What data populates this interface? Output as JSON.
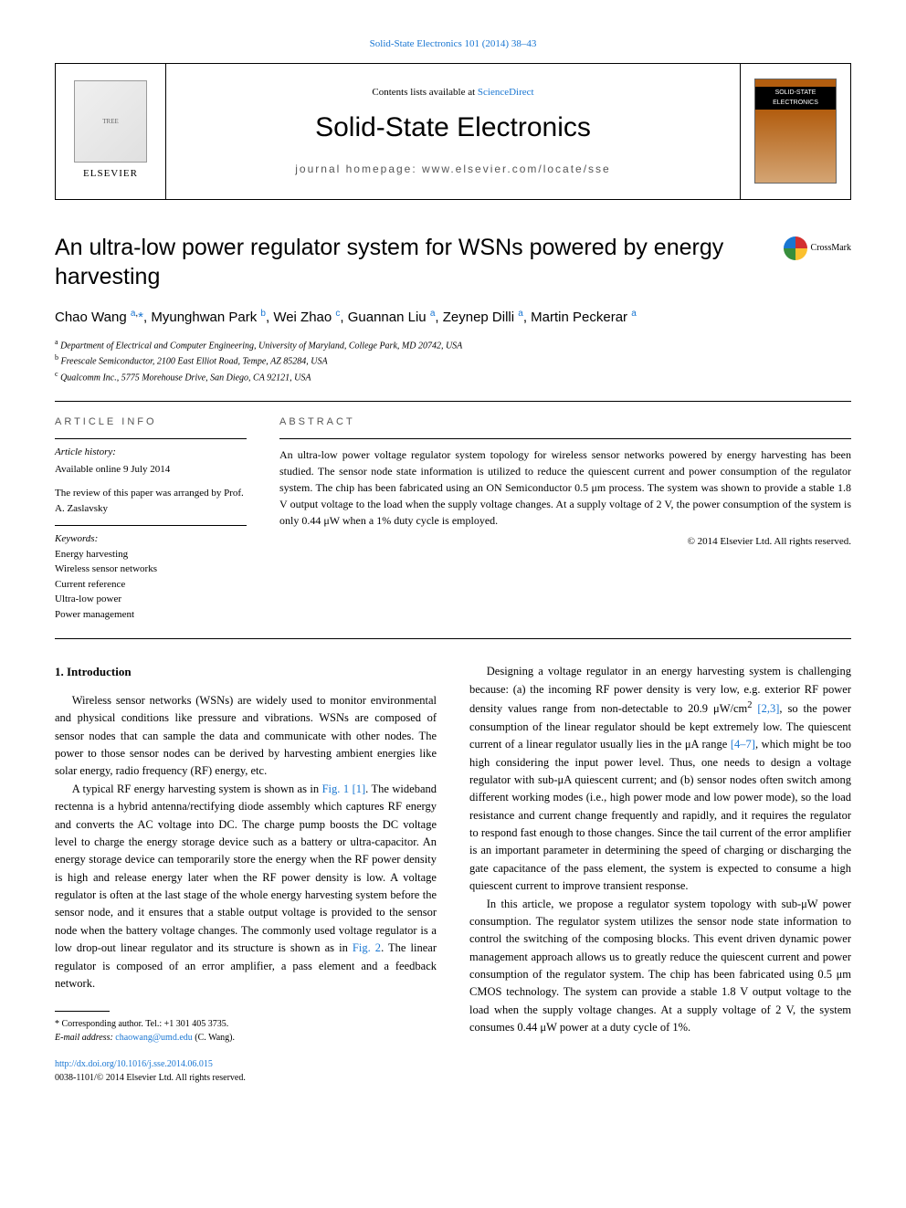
{
  "colors": {
    "link": "#1976d2",
    "text": "#000000",
    "muted": "#555555",
    "bg": "#ffffff",
    "cover_top": "#b25d0f",
    "cover_bottom": "#d4a574"
  },
  "typography": {
    "body_family": "Georgia, 'Times New Roman', serif",
    "sans_family": "Arial, sans-serif",
    "title_size_pt": 25,
    "journal_size_pt": 30,
    "body_size_pt": 12.5
  },
  "topline": {
    "text": "Solid-State Electronics 101 (2014) 38–43"
  },
  "banner": {
    "publisher": "ELSEVIER",
    "contents_prefix": "Contents lists available at ",
    "contents_link": "ScienceDirect",
    "journal": "Solid-State Electronics",
    "homepage": "journal homepage: www.elsevier.com/locate/sse",
    "cover_label": "SOLID-STATE ELECTRONICS"
  },
  "crossmark": "CrossMark",
  "title": "An ultra-low power regulator system for WSNs powered by energy harvesting",
  "authors_html": "Chao Wang <sup><a href='#'>a</a>,</sup><a href='#'>*</a>, Myunghwan Park <sup><a href='#'>b</a></sup>, Wei Zhao <sup><a href='#'>c</a></sup>, Guannan Liu <sup><a href='#'>a</a></sup>, Zeynep Dilli <sup><a href='#'>a</a></sup>, Martin Peckerar <sup><a href='#'>a</a></sup>",
  "affiliations": [
    {
      "sup": "a",
      "text": "Department of Electrical and Computer Engineering, University of Maryland, College Park, MD 20742, USA"
    },
    {
      "sup": "b",
      "text": "Freescale Semiconductor, 2100 East Elliot Road, Tempe, AZ 85284, USA"
    },
    {
      "sup": "c",
      "text": "Qualcomm Inc., 5775 Morehouse Drive, San Diego, CA 92121, USA"
    }
  ],
  "article_info": {
    "heading": "ARTICLE INFO",
    "history_label": "Article history:",
    "history_text": "Available online 9 July 2014",
    "review_text": "The review of this paper was arranged by Prof. A. Zaslavsky",
    "keywords_label": "Keywords:",
    "keywords": [
      "Energy harvesting",
      "Wireless sensor networks",
      "Current reference",
      "Ultra-low power",
      "Power management"
    ]
  },
  "abstract": {
    "heading": "ABSTRACT",
    "text": "An ultra-low power voltage regulator system topology for wireless sensor networks powered by energy harvesting has been studied. The sensor node state information is utilized to reduce the quiescent current and power consumption of the regulator system. The chip has been fabricated using an ON Semiconductor 0.5 μm process. The system was shown to provide a stable 1.8 V output voltage to the load when the supply voltage changes. At a supply voltage of 2 V, the power consumption of the system is only 0.44 μW when a 1% duty cycle is employed.",
    "copyright": "© 2014 Elsevier Ltd. All rights reserved."
  },
  "section1": {
    "heading": "1. Introduction",
    "paras_left": [
      "Wireless sensor networks (WSNs) are widely used to monitor environmental and physical conditions like pressure and vibrations. WSNs are composed of sensor nodes that can sample the data and communicate with other nodes. The power to those sensor nodes can be derived by harvesting ambient energies like solar energy, radio frequency (RF) energy, etc.",
      "A typical RF energy harvesting system is shown as in <a class='ref-link' href='#'>Fig. 1</a> <a class='ref-link' href='#'>[1]</a>. The wideband rectenna is a hybrid antenna/rectifying diode assembly which captures RF energy and converts the AC voltage into DC. The charge pump boosts the DC voltage level to charge the energy storage device such as a battery or ultra-capacitor. An energy storage device can temporarily store the energy when the RF power density is high and release energy later when the RF power density is low. A voltage regulator is often at the last stage of the whole energy harvesting system before the sensor node, and it ensures that a stable output voltage is provided to the sensor node when the battery voltage changes. The commonly used voltage regulator is a low drop-out linear regulator and its structure is shown as in <a class='ref-link' href='#'>Fig. 2</a>. The linear regulator is composed of an error amplifier, a pass element and a feedback network."
    ],
    "paras_right": [
      "Designing a voltage regulator in an energy harvesting system is challenging because: (a) the incoming RF power density is very low, e.g. exterior RF power density values range from non-detectable to 20.9 μW/cm<sup>2</sup> <a class='ref-link' href='#'>[2,3]</a>, so the power consumption of the linear regulator should be kept extremely low. The quiescent current of a linear regulator usually lies in the μA range <a class='ref-link' href='#'>[4–7]</a>, which might be too high considering the input power level. Thus, one needs to design a voltage regulator with sub-μA quiescent current; and (b) sensor nodes often switch among different working modes (i.e., high power mode and low power mode), so the load resistance and current change frequently and rapidly, and it requires the regulator to respond fast enough to those changes. Since the tail current of the error amplifier is an important parameter in determining the speed of charging or discharging the gate capacitance of the pass element, the system is expected to consume a high quiescent current to improve transient response.",
      "In this article, we propose a regulator system topology with sub-μW power consumption. The regulator system utilizes the sensor node state information to control the switching of the composing blocks. This event driven dynamic power management approach allows us to greatly reduce the quiescent current and power consumption of the regulator system. The chip has been fabricated using 0.5 μm CMOS technology. The system can provide a stable 1.8 V output voltage to the load when the supply voltage changes. At a supply voltage of 2 V, the system consumes 0.44 μW power at a duty cycle of 1%."
    ]
  },
  "footnote": {
    "corresponding": "* Corresponding author. Tel.: +1 301 405 3735.",
    "email_label": "E-mail address:",
    "email": "chaowang@umd.edu",
    "email_suffix": " (C. Wang)."
  },
  "bottom": {
    "doi": "http://dx.doi.org/10.1016/j.sse.2014.06.015",
    "issn": "0038-1101/© 2014 Elsevier Ltd. All rights reserved."
  }
}
